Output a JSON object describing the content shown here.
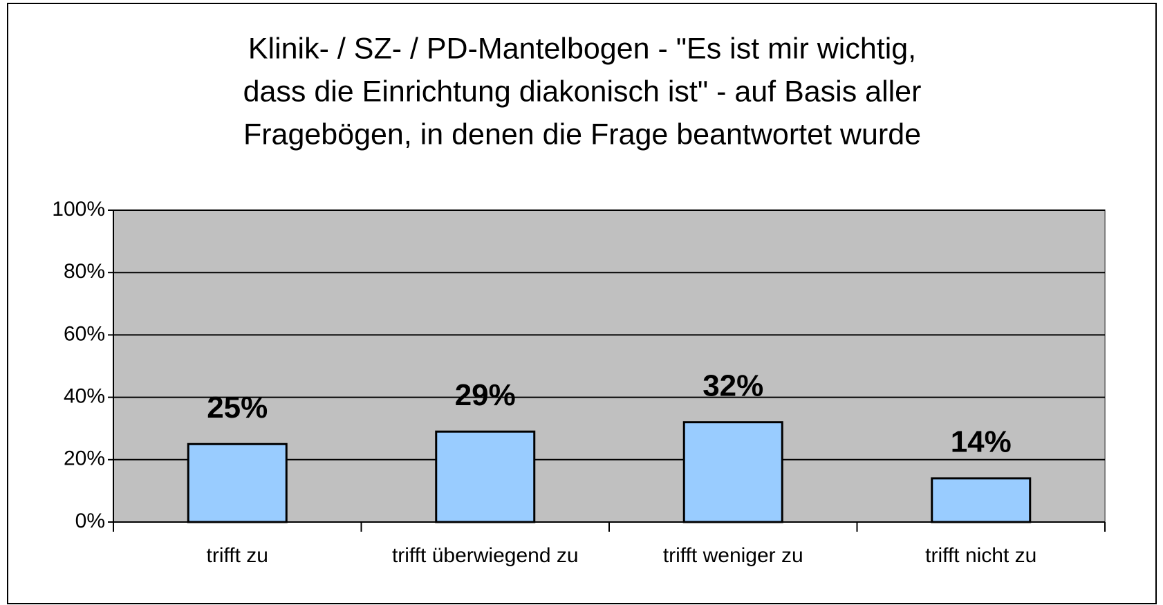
{
  "chart_data": {
    "type": "bar",
    "title": [
      "Klinik- / SZ- / PD-Mantelbogen - \"Es ist mir wichtig,",
      "dass die Einrichtung diakonisch ist\" - auf Basis aller",
      "Fragebögen, in denen die Frage beantwortet wurde"
    ],
    "categories": [
      "trifft zu",
      "trifft überwiegend zu",
      "trifft weniger zu",
      "trifft nicht zu"
    ],
    "values": [
      25,
      29,
      32,
      14
    ],
    "value_labels": [
      "25%",
      "29%",
      "32%",
      "14%"
    ],
    "color": "#99ccff",
    "ylim": [
      0,
      100
    ],
    "yticks": [
      {
        "value": 0,
        "label": "0%"
      },
      {
        "value": 20,
        "label": "20%"
      },
      {
        "value": 40,
        "label": "40%"
      },
      {
        "value": 60,
        "label": "60%"
      },
      {
        "value": 80,
        "label": "80%"
      },
      {
        "value": 100,
        "label": "100%"
      }
    ],
    "grid": true
  }
}
